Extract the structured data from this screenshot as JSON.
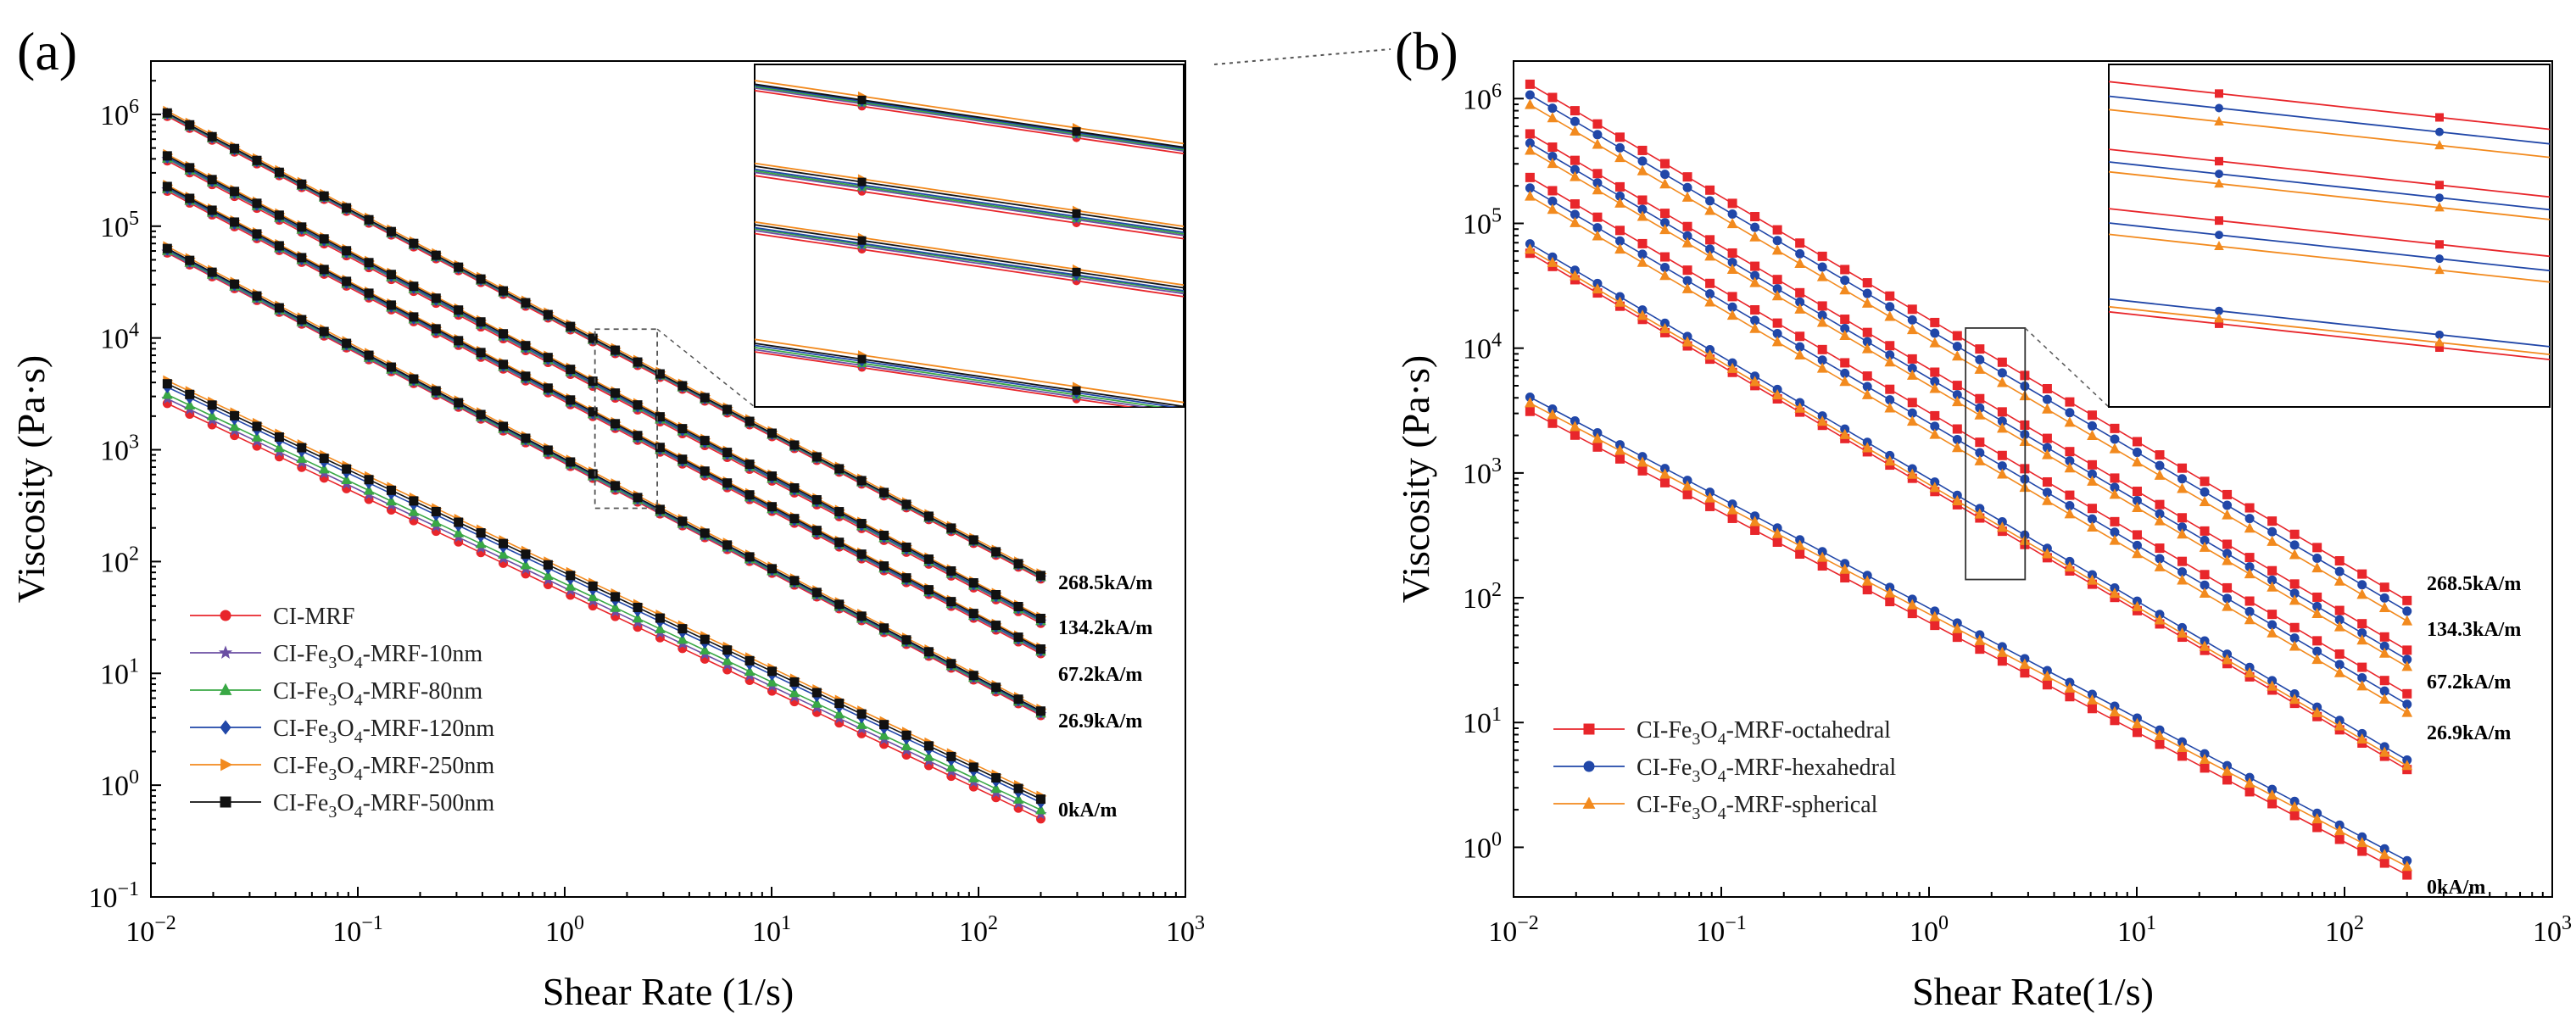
{
  "chart_data": [
    {
      "type": "line",
      "panel_label": "(a)",
      "xlabel": "Shear Rate (1/s)",
      "ylabel": "Viscosity (Pa·s)",
      "xscale": "log",
      "yscale": "log",
      "xlim": [
        0.01,
        1000
      ],
      "ylim": [
        0.1,
        3000000
      ],
      "x_ticks": [
        0.01,
        0.1,
        1,
        10,
        100,
        1000
      ],
      "x_tick_labels": [
        [
          "10",
          "−2"
        ],
        [
          "10",
          "−1"
        ],
        [
          "10",
          "0"
        ],
        [
          "10",
          "1"
        ],
        [
          "10",
          "2"
        ],
        [
          "10",
          "3"
        ]
      ],
      "y_ticks": [
        0.1,
        1,
        10,
        100,
        1000,
        10000,
        100000,
        1000000
      ],
      "y_tick_labels": [
        [
          "10",
          "−1"
        ],
        [
          "10",
          "0"
        ],
        [
          "10",
          "1"
        ],
        [
          "10",
          "2"
        ],
        [
          "10",
          "3"
        ],
        [
          "10",
          "4"
        ],
        [
          "10",
          "5"
        ],
        [
          "10",
          "6"
        ]
      ],
      "field_labels": [
        {
          "text": "268.5kA/m",
          "field": 268.5
        },
        {
          "text": "134.2kA/m",
          "field": 134.2
        },
        {
          "text": "67.2kA/m",
          "field": 67.2
        },
        {
          "text": "26.9kA/m",
          "field": 26.9
        },
        {
          "text": "0kA/m",
          "field": 0
        }
      ],
      "legend_position": "lower-left",
      "inset": {
        "position": "top-right",
        "zoom_x_range": [
          1.4,
          2.8
        ]
      },
      "shear_rate_range": [
        0.012,
        200
      ],
      "series": [
        {
          "name": "CI-MRF",
          "legend_parts": [
            "CI-",
            "",
            "MRF"
          ],
          "color": "#e8262b",
          "marker": "circle",
          "viscosity_at_200_per_s": {
            "268.5": 70,
            "134.2": 28,
            "67.2": 15,
            "26.9": 4.2,
            "0": 0.5
          }
        },
        {
          "name": "CI-Fe3O4-MRF-10nm",
          "legend_parts": [
            "CI-Fe",
            "3",
            "O",
            "4",
            "-MRF-10nm"
          ],
          "color": "#6b4fa3",
          "marker": "star",
          "viscosity_at_200_per_s": {
            "268.5": 72,
            "134.2": 29,
            "67.2": 15.5,
            "26.9": 4.3,
            "0": 0.55
          }
        },
        {
          "name": "CI-Fe3O4-MRF-80nm",
          "legend_parts": [
            "CI-Fe",
            "3",
            "O",
            "4",
            "-MRF-80nm"
          ],
          "color": "#39a845",
          "marker": "triangle",
          "viscosity_at_200_per_s": {
            "268.5": 73,
            "134.2": 29.5,
            "67.2": 15.8,
            "26.9": 4.4,
            "0": 0.6
          }
        },
        {
          "name": "CI-Fe3O4-MRF-120nm",
          "legend_parts": [
            "CI-Fe",
            "3",
            "O",
            "4",
            "-MRF-120nm"
          ],
          "color": "#2147a8",
          "marker": "diamond",
          "viscosity_at_200_per_s": {
            "268.5": 74,
            "134.2": 30,
            "67.2": 16,
            "26.9": 4.5,
            "0": 0.7
          }
        },
        {
          "name": "CI-Fe3O4-MRF-250nm",
          "legend_parts": [
            "CI-Fe",
            "3",
            "O",
            "4",
            "-MRF-250nm"
          ],
          "color": "#f28a1e",
          "marker": "triangle-right",
          "viscosity_at_200_per_s": {
            "268.5": 78,
            "134.2": 32,
            "67.2": 17,
            "26.9": 4.8,
            "0": 0.8
          }
        },
        {
          "name": "CI-Fe3O4-MRF-500nm",
          "legend_parts": [
            "CI-Fe",
            "3",
            "O",
            "4",
            "-MRF-500nm"
          ],
          "color": "#111111",
          "marker": "square",
          "viscosity_at_200_per_s": {
            "268.5": 75,
            "134.2": 31,
            "67.2": 16.5,
            "26.9": 4.6,
            "0": 0.75
          }
        }
      ]
    },
    {
      "type": "line",
      "panel_label": "(b)",
      "xlabel": "Shear   Rate(1/s)",
      "ylabel": "Viscosity (Pa·s)",
      "xscale": "log",
      "yscale": "log",
      "xlim": [
        0.01,
        1000
      ],
      "ylim": [
        0.4,
        2000000
      ],
      "x_ticks": [
        0.01,
        0.1,
        1,
        10,
        100,
        1000
      ],
      "x_tick_labels": [
        [
          "10",
          "−2"
        ],
        [
          "10",
          "−1"
        ],
        [
          "10",
          "0"
        ],
        [
          "10",
          "1"
        ],
        [
          "10",
          "2"
        ],
        [
          "10",
          "3"
        ]
      ],
      "y_ticks": [
        1,
        10,
        100,
        1000,
        10000,
        100000,
        1000000
      ],
      "y_tick_labels": [
        [
          "10",
          "0"
        ],
        [
          "10",
          "1"
        ],
        [
          "10",
          "2"
        ],
        [
          "10",
          "3"
        ],
        [
          "10",
          "4"
        ],
        [
          "10",
          "5"
        ],
        [
          "10",
          "6"
        ]
      ],
      "field_labels": [
        {
          "text": "268.5kA/m",
          "field": 268.5
        },
        {
          "text": "134.3kA/m",
          "field": 134.3
        },
        {
          "text": "67.2kA/m",
          "field": 67.2
        },
        {
          "text": "26.9kA/m",
          "field": 26.9
        },
        {
          "text": "0kA/m",
          "field": 0
        }
      ],
      "legend_position": "lower-left",
      "inset": {
        "position": "top-right",
        "zoom_x_range": [
          1.5,
          2.9
        ]
      },
      "shear_rate_range": [
        0.012,
        200
      ],
      "series": [
        {
          "name": "CI-Fe3O4-MRF-octahedral",
          "legend_parts": [
            "CI-Fe",
            "3",
            "O",
            "4",
            "-MRF-octahedral"
          ],
          "color": "#e8262b",
          "marker": "square",
          "viscosity_at_200_per_s": {
            "268.5": 95,
            "134.3": 38,
            "67.2": 17,
            "26.9": 4.2,
            "0": 0.6
          }
        },
        {
          "name": "CI-Fe3O4-MRF-hexahedral",
          "legend_parts": [
            "CI-Fe",
            "3",
            "O",
            "4",
            "-MRF-hexahedral"
          ],
          "color": "#2147a8",
          "marker": "circle",
          "viscosity_at_200_per_s": {
            "268.5": 78,
            "134.3": 32,
            "67.2": 14,
            "26.9": 5,
            "0": 0.78
          }
        },
        {
          "name": "CI-Fe3O4-MRF-spherical",
          "legend_parts": [
            "CI-Fe",
            "3",
            "O",
            "4",
            "-MRF-spherical"
          ],
          "color": "#f28a1e",
          "marker": "triangle",
          "viscosity_at_200_per_s": {
            "268.5": 65,
            "134.3": 28,
            "67.2": 12,
            "26.9": 4.5,
            "0": 0.7
          }
        }
      ]
    }
  ]
}
